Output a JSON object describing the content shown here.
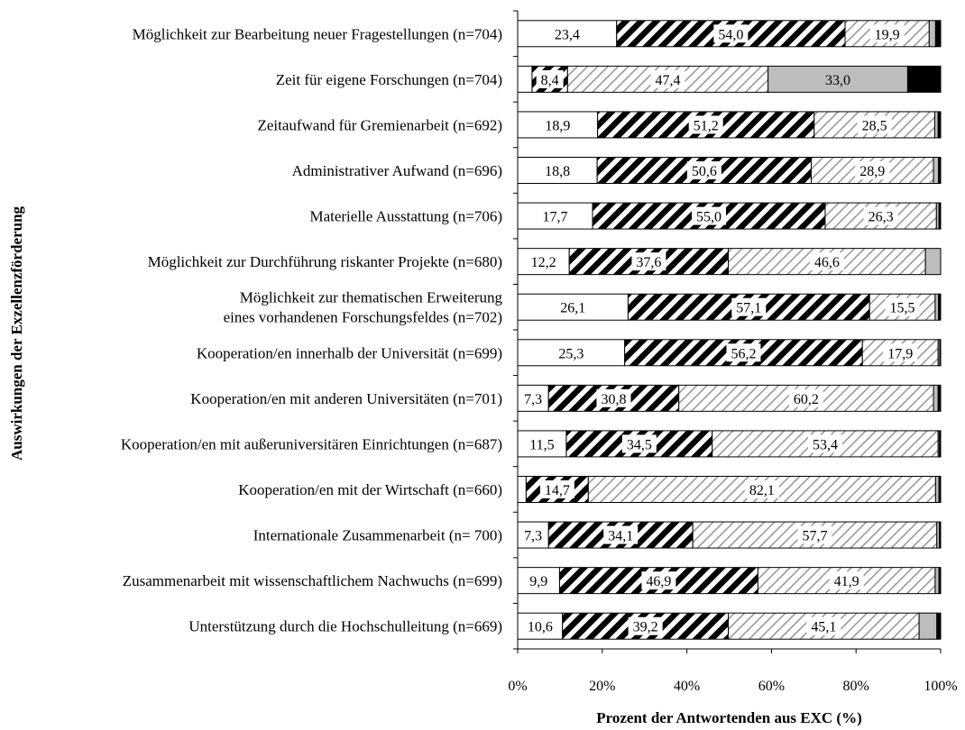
{
  "chart_data": {
    "type": "bar",
    "orientation": "horizontal",
    "stacked": true,
    "percent": true,
    "xlabel": "Prozent der Antwortenden aus EXC (%)",
    "ylabel": "Auswirkungen der Exzellenzförderung",
    "xlim": [
      0,
      100
    ],
    "x_ticks": [
      "0%",
      "20%",
      "40%",
      "60%",
      "80%",
      "100%"
    ],
    "grid": false,
    "legend": "none",
    "categories": [
      [
        "Möglichkeit zur Bearbeitung neuer Fragestellungen (n=704)"
      ],
      [
        "Zeit für eigene Forschungen (n=704)"
      ],
      [
        "Zeitaufwand für Gremienarbeit (n=692)"
      ],
      [
        "Administrativer Aufwand (n=696)"
      ],
      [
        "Materielle Ausstattung (n=706)"
      ],
      [
        "Möglichkeit zur Durchführung riskanter Projekte (n=680)"
      ],
      [
        "Möglichkeit zur thematischen Erweiterung",
        "eines vorhandenen Forschungsfeldes (n=702)"
      ],
      [
        "Kooperation/en innerhalb der Universität (n=699)"
      ],
      [
        "Kooperation/en mit anderen Universitäten (n=701)"
      ],
      [
        "Kooperation/en mit außeruniversitären Einrichtungen (n=687)"
      ],
      [
        "Kooperation/en mit der Wirtschaft (n=660)"
      ],
      [
        "Internationale Zusammenarbeit (n= 700)"
      ],
      [
        "Zusammenarbeit mit wissenschaftlichem Nachwuchs (n=699)"
      ],
      [
        "Unterstützung durch die Hochschulleitung (n=669)"
      ]
    ],
    "series": [
      {
        "pattern": "white",
        "values": [
          23.4,
          3.4,
          18.9,
          18.8,
          17.7,
          12.2,
          26.1,
          25.3,
          7.3,
          11.5,
          2.0,
          7.3,
          9.9,
          10.6
        ],
        "labels": [
          "23,4",
          "",
          "18,9",
          "18,8",
          "17,7",
          "12,2",
          "26,1",
          "25,3",
          "7,3",
          "11,5",
          "",
          "7,3",
          "9,9",
          "10,6"
        ]
      },
      {
        "pattern": "dense-hatch",
        "values": [
          54.0,
          8.4,
          51.2,
          50.6,
          55.0,
          37.6,
          57.1,
          56.2,
          30.8,
          34.5,
          14.7,
          34.1,
          46.9,
          39.2
        ],
        "labels": [
          "54,0",
          "8,4",
          "51,2",
          "50,6",
          "55,0",
          "37,6",
          "57,1",
          "56,2",
          "30,8",
          "34,5",
          "14,7",
          "34,1",
          "46,9",
          "39,2"
        ]
      },
      {
        "pattern": "light-hatch",
        "values": [
          19.9,
          47.4,
          28.5,
          28.9,
          26.3,
          46.6,
          15.5,
          17.9,
          60.2,
          53.4,
          82.1,
          57.7,
          41.9,
          45.1
        ],
        "labels": [
          "19,9",
          "47,4",
          "28,5",
          "28,9",
          "26,3",
          "46,6",
          "15,5",
          "17,9",
          "60,2",
          "53,4",
          "82,1",
          "57,7",
          "41,9",
          "45,1"
        ]
      },
      {
        "pattern": "gray",
        "values": [
          1.5,
          33.0,
          0.8,
          1.2,
          0.6,
          3.6,
          0.8,
          0.4,
          1.1,
          0.3,
          0.8,
          0.6,
          0.9,
          4.2
        ],
        "labels": [
          "",
          "33,0",
          "",
          "",
          "",
          "",
          "",
          "",
          "",
          "",
          "",
          "",
          "",
          ""
        ]
      },
      {
        "pattern": "black",
        "values": [
          1.2,
          7.8,
          0.6,
          0.5,
          0.4,
          0.0,
          0.5,
          0.2,
          0.6,
          0.3,
          0.4,
          0.3,
          0.4,
          0.9
        ],
        "labels": [
          "",
          "7,8",
          "",
          "",
          "",
          "",
          "",
          "",
          "",
          "",
          "",
          "",
          "",
          ""
        ]
      }
    ]
  }
}
